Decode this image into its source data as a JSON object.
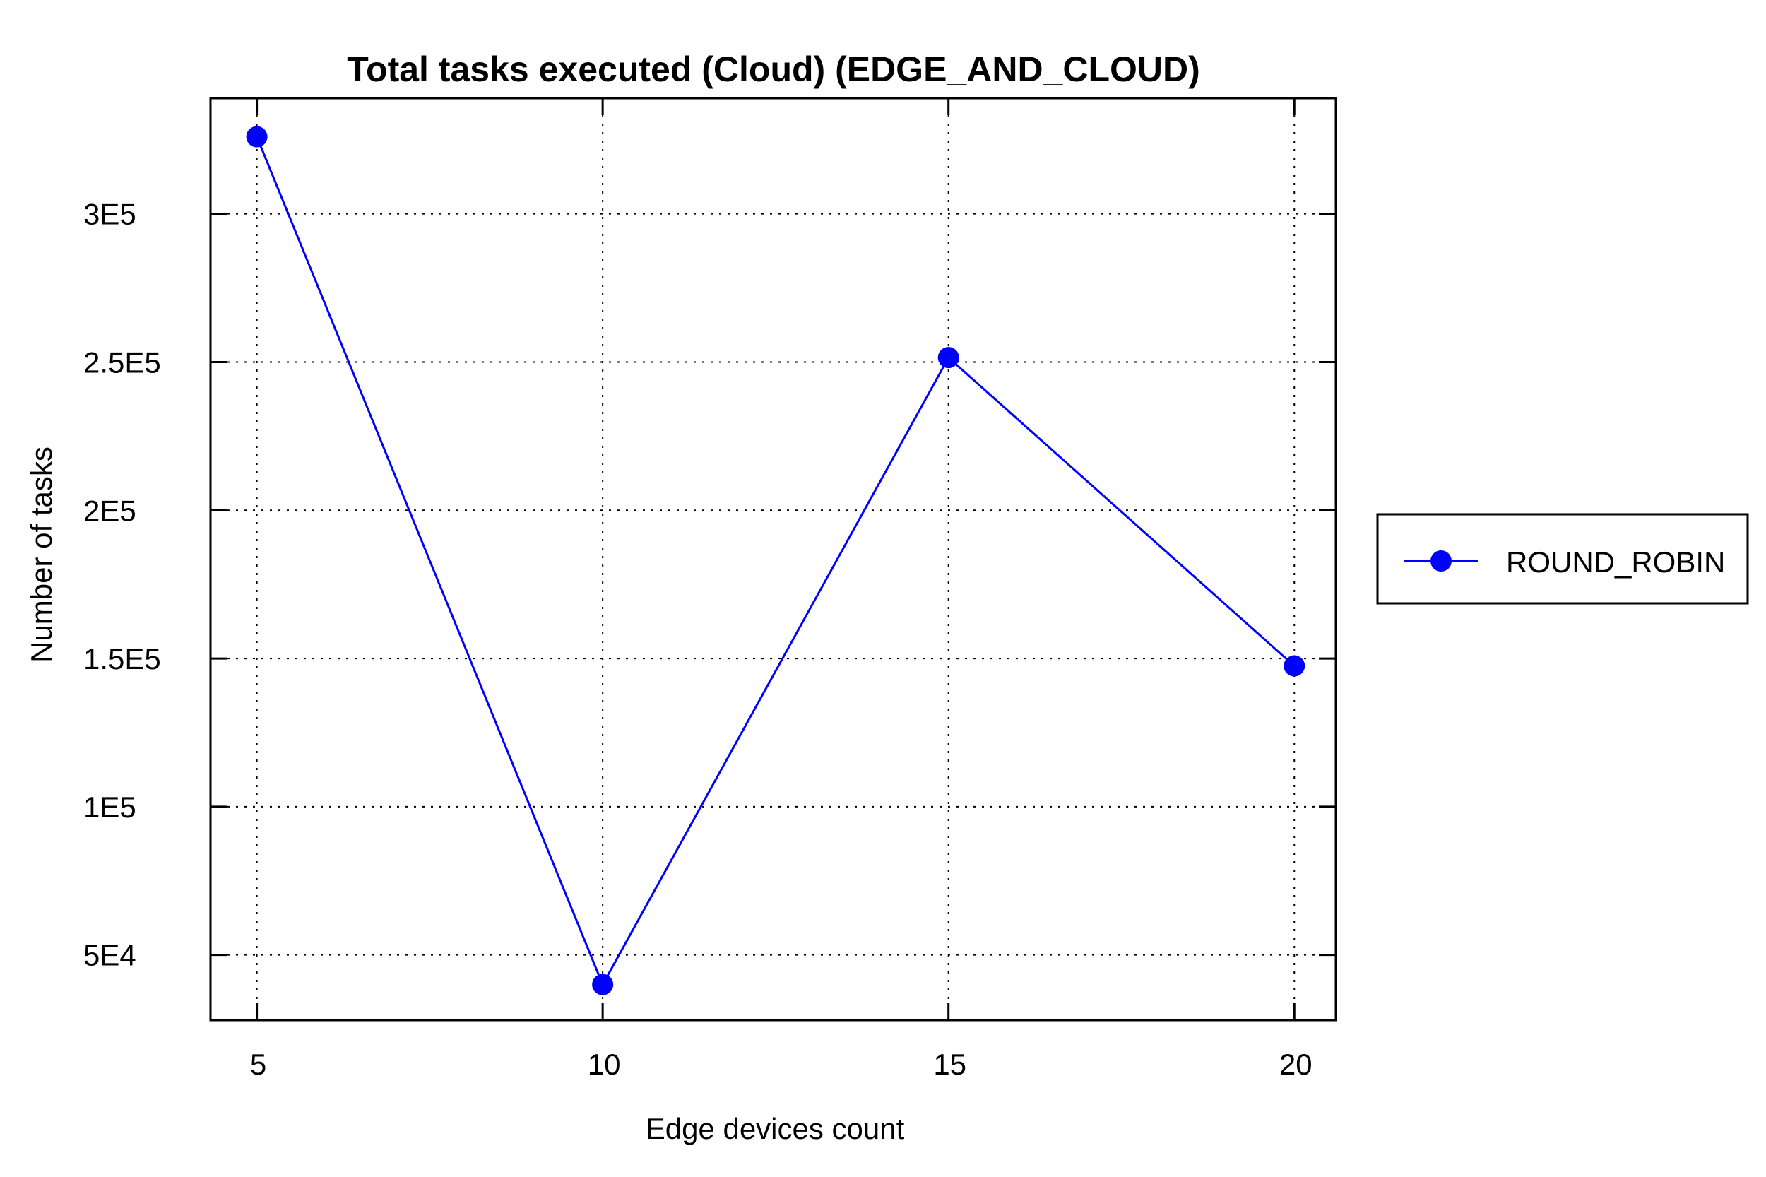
{
  "chart_data": {
    "type": "line",
    "title": "Total tasks executed (Cloud) (EDGE_AND_CLOUD)",
    "xlabel": "Edge devices count",
    "ylabel": "Number of tasks",
    "x": [
      5,
      10,
      15,
      20
    ],
    "x_tick_labels": [
      "5",
      "10",
      "15",
      "20"
    ],
    "y_ticks": [
      50000,
      100000,
      150000,
      200000,
      250000,
      300000
    ],
    "y_tick_labels": [
      "5E4",
      "1E5",
      "1.5E5",
      "2E5",
      "2.5E5",
      "3E5"
    ],
    "xlim": [
      4.33,
      20.6
    ],
    "ylim": [
      28000,
      339000
    ],
    "grid": true,
    "grid_style": "dotted",
    "legend_position": "right",
    "series": [
      {
        "name": "ROUND_ROBIN",
        "color": "#0000ff",
        "marker": "circle",
        "values": [
          326000,
          40000,
          251500,
          147500
        ]
      }
    ]
  }
}
